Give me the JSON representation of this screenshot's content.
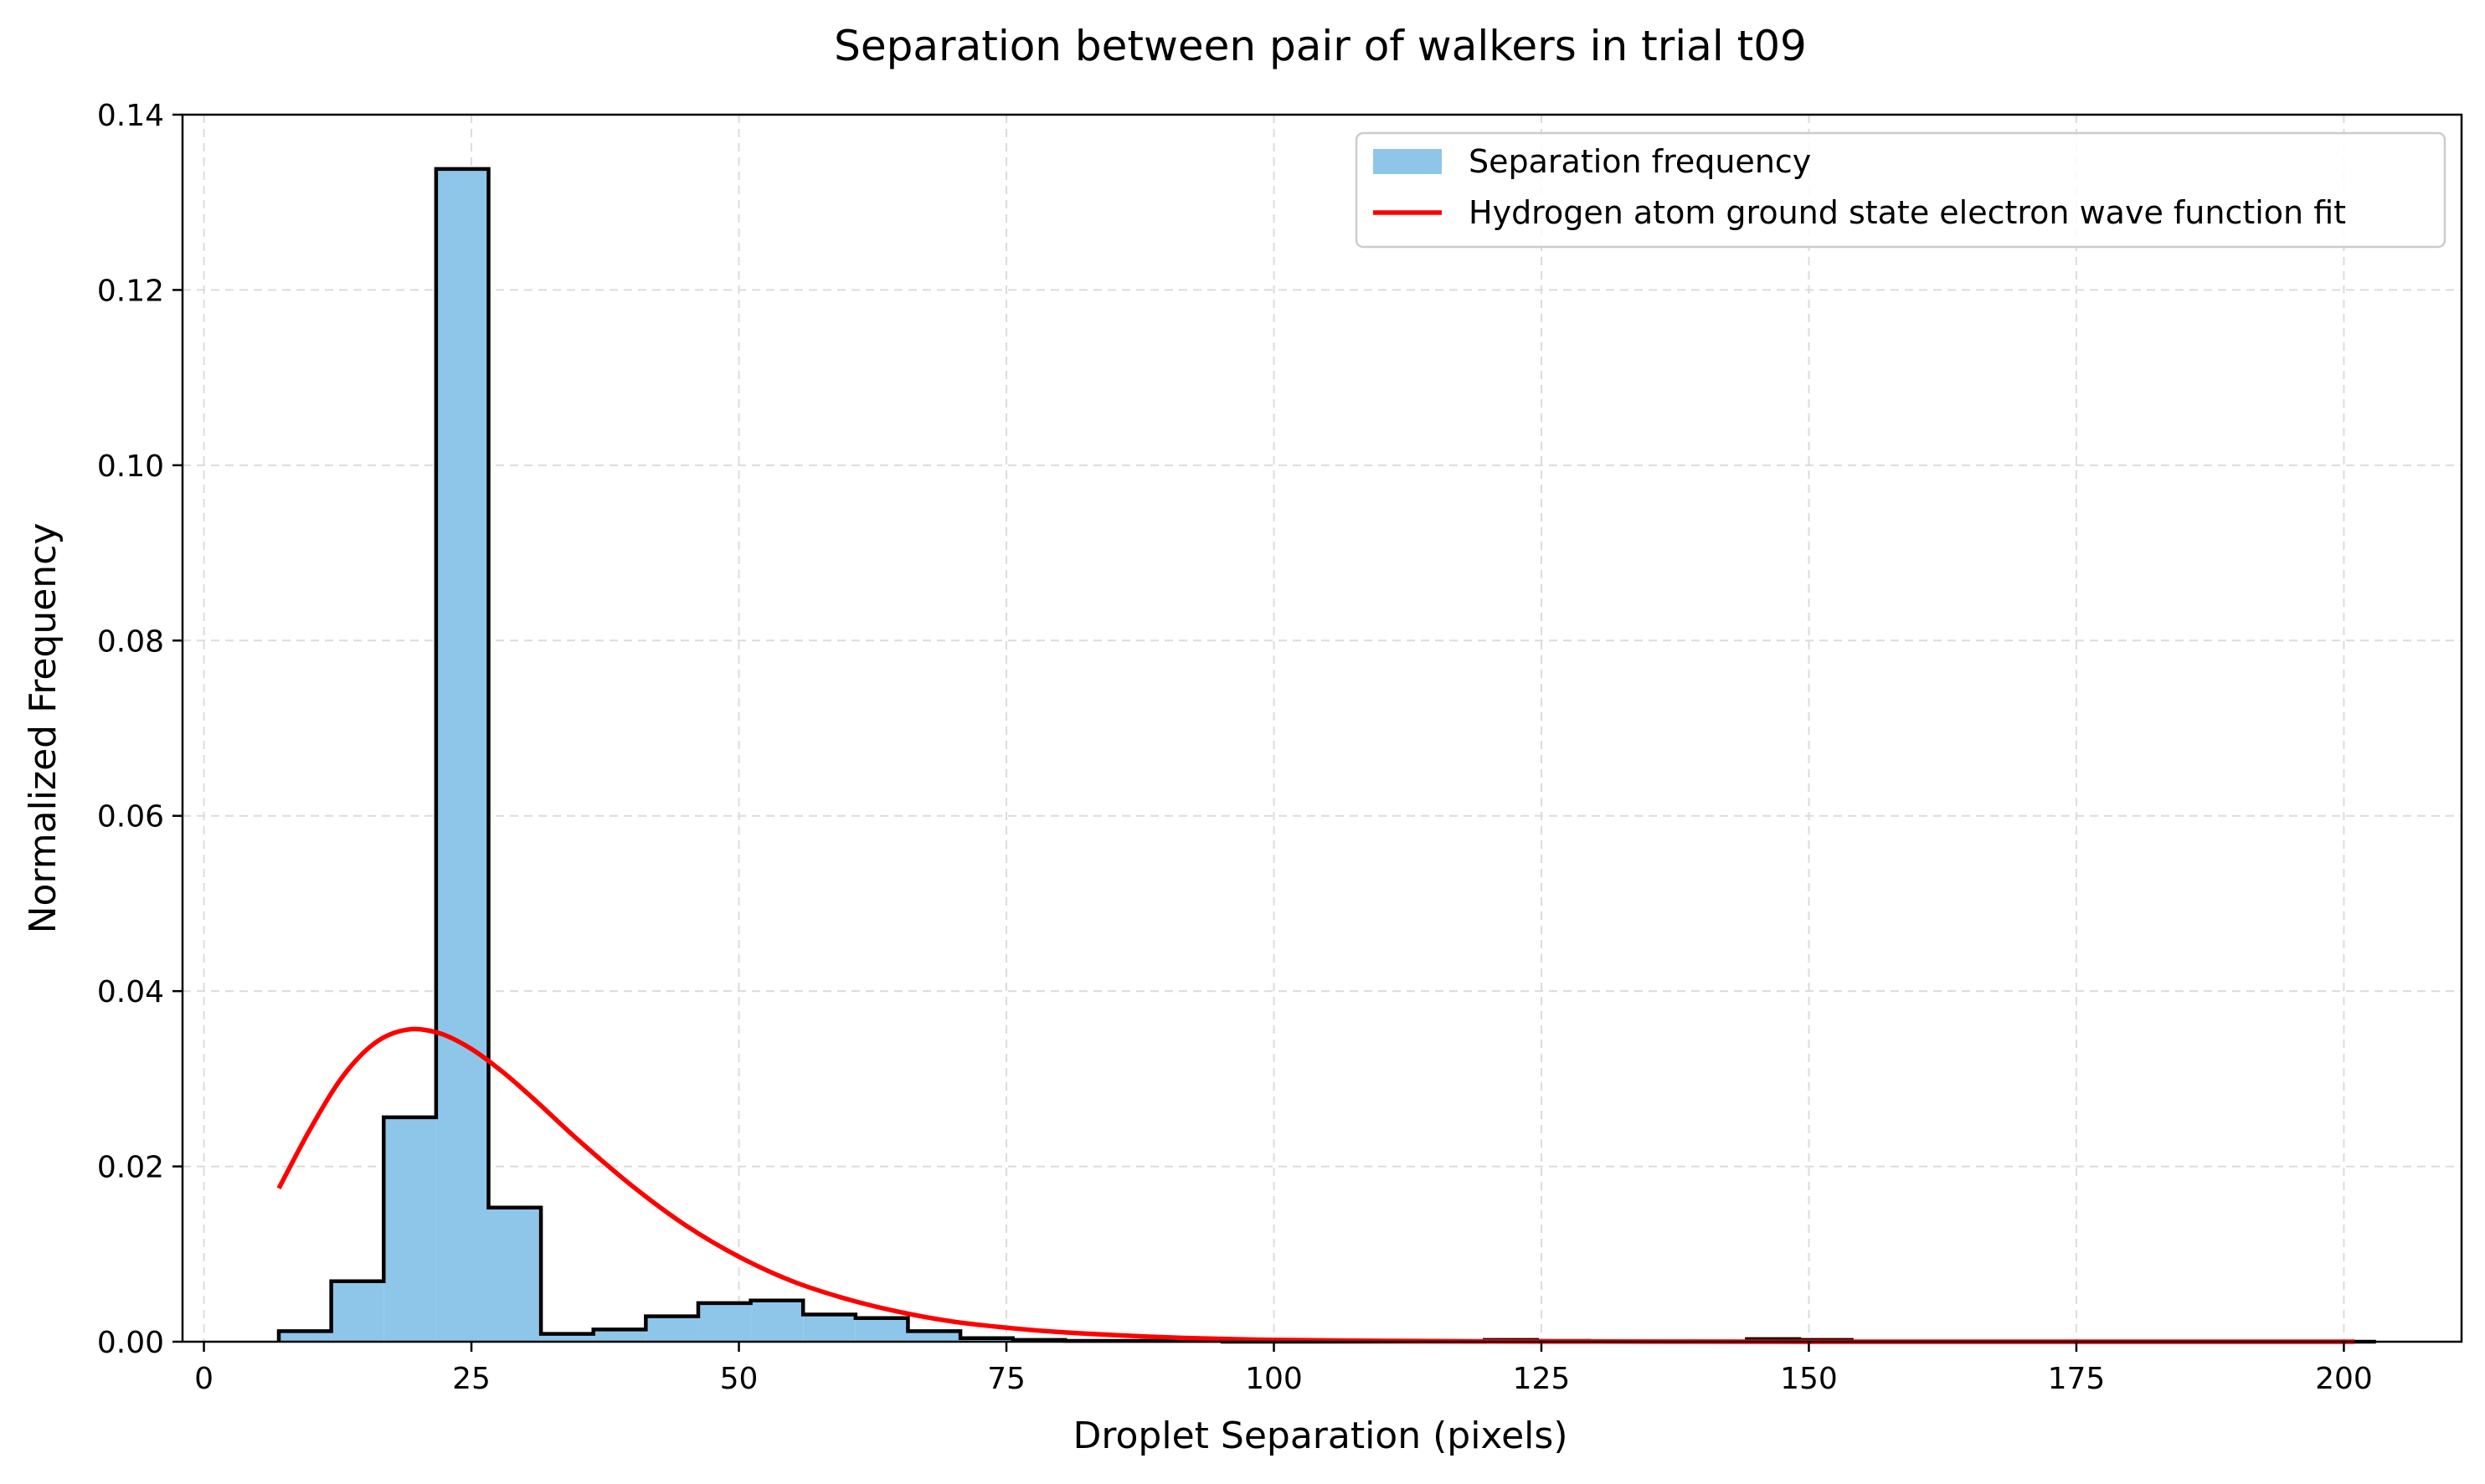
{
  "chart_data": {
    "type": "bar",
    "title": "Separation between pair of walkers in trial t09",
    "xlabel": "Droplet Separation (pixels)",
    "ylabel": "Normalized Frequency",
    "xlim": [
      -2,
      211
    ],
    "ylim": [
      0,
      0.14
    ],
    "xticks": [
      0,
      25,
      50,
      75,
      100,
      125,
      150,
      175,
      200
    ],
    "yticks": [
      0.0,
      0.02,
      0.04,
      0.06,
      0.08,
      0.1,
      0.12,
      0.14
    ],
    "xtick_labels": [
      "0",
      "25",
      "50",
      "75",
      "100",
      "125",
      "150",
      "175",
      "200"
    ],
    "ytick_labels": [
      "0.00",
      "0.02",
      "0.04",
      "0.06",
      "0.08",
      "0.10",
      "0.12",
      "0.14"
    ],
    "grid": true,
    "legend_position": "top-right",
    "histogram": {
      "name": "Separation frequency",
      "color": "#8ec6ea",
      "edge_color": "#000000",
      "bin_edges": [
        7.0,
        11.9,
        16.8,
        21.7,
        26.6,
        31.5,
        36.4,
        41.3,
        46.2,
        51.1,
        56.0,
        60.9,
        65.8,
        70.7,
        75.6,
        80.5,
        85.4,
        90.3,
        95.2,
        100.1,
        105.0,
        109.9,
        114.8,
        119.7,
        124.6,
        129.5,
        134.4,
        139.3,
        144.2,
        149.1,
        154.0,
        158.9,
        163.8,
        168.7,
        173.6,
        178.5,
        183.4,
        188.3,
        193.2,
        198.1,
        203.0
      ],
      "values": [
        0.0012,
        0.0069,
        0.0256,
        0.1338,
        0.0153,
        0.0009,
        0.0014,
        0.0029,
        0.0044,
        0.0047,
        0.0031,
        0.0027,
        0.0012,
        0.0004,
        0.0002,
        0.0001,
        0.0001,
        0.0001,
        0.0,
        0.0,
        0.0,
        0.0,
        0.0,
        0.0002,
        0.0001,
        0.0,
        0.0,
        0.0,
        0.0003,
        0.0002,
        0.0,
        0.0,
        0.0,
        0.0,
        0.0,
        0.0,
        0.0,
        0.0,
        0.0,
        0.0
      ]
    },
    "fit": {
      "name": "Hydrogen atom ground state electron wave function fit",
      "color": "#ff0000",
      "x": [
        7,
        10,
        13,
        16,
        19,
        22,
        25,
        28,
        31,
        35,
        40,
        45,
        50,
        55,
        60,
        65,
        70,
        75,
        80,
        90,
        100,
        110,
        120,
        130,
        140,
        150,
        160,
        170,
        180,
        190,
        201
      ],
      "y": [
        0.0175,
        0.0244,
        0.0303,
        0.0341,
        0.0356,
        0.0352,
        0.0334,
        0.0307,
        0.0275,
        0.023,
        0.0178,
        0.0133,
        0.0097,
        0.0069,
        0.0049,
        0.0034,
        0.0023,
        0.0016,
        0.0011,
        0.0005,
        0.0002,
        0.0001,
        4e-05,
        2e-05,
        1e-05,
        0.0,
        0.0,
        0.0,
        0.0,
        0.0,
        0.0
      ]
    }
  }
}
